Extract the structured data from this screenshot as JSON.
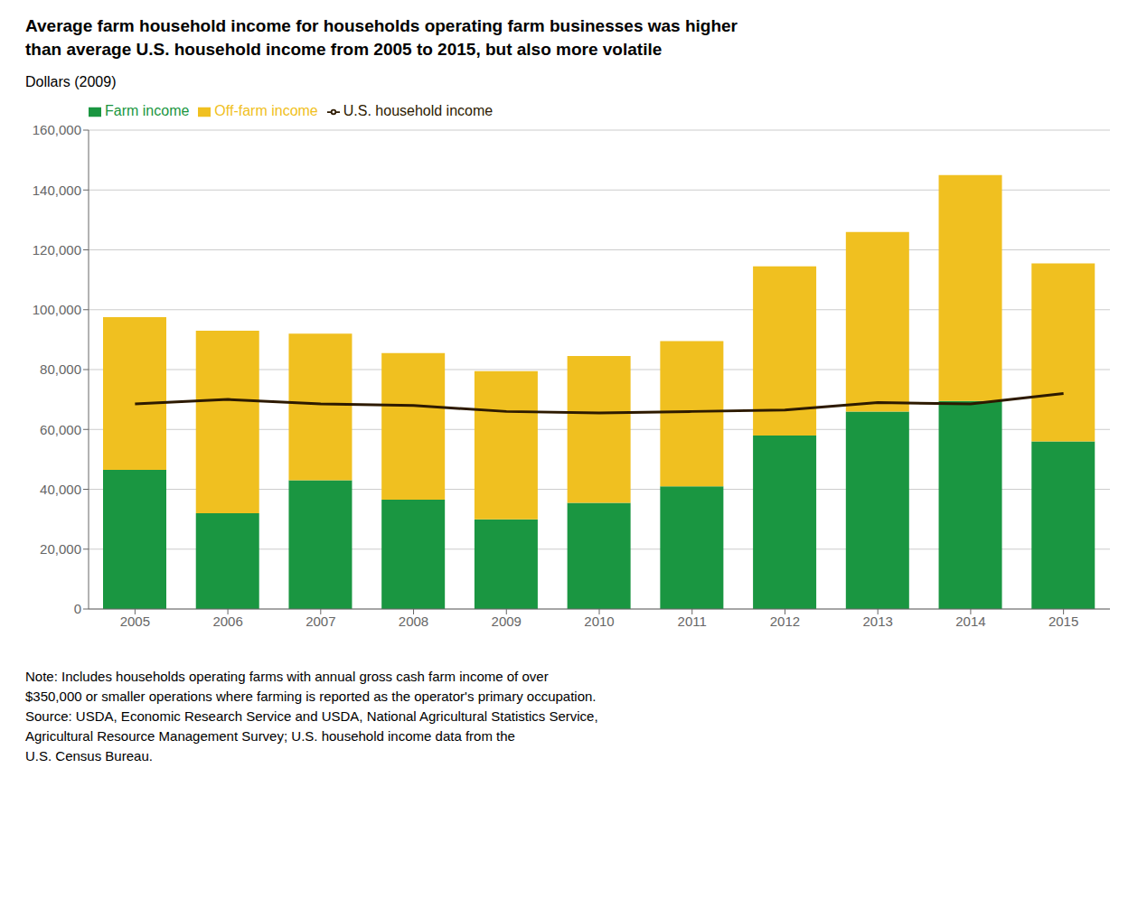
{
  "chart_data": {
    "type": "bar",
    "title": "Average farm household income for households operating farm businesses was higher\nthan average U.S. household income from 2005 to 2015, but also more volatile",
    "y_label": "Dollars (2009)",
    "annotations": [
      "Note: Includes households operating farms with annual gross cash farm income of over\n$350,000 or smaller operations where farming is reported as the operator's primary occupation.\nSource: USDA, Economic Research Service and USDA, National Agricultural Statistics Service,\nAgricultural Resource Management Survey; U.S. household income data from the\nU.S. Census Bureau."
    ],
    "categories": [
      "2005",
      "2006",
      "2007",
      "2008",
      "2009",
      "2010",
      "2011",
      "2012",
      "2013",
      "2014",
      "2015"
    ],
    "series": [
      {
        "name": "Farm income",
        "type": "bar",
        "color": "#1a9641",
        "values": [
          46500,
          32000,
          43000,
          36500,
          30000,
          35500,
          41000,
          58000,
          66000,
          69500,
          56000
        ]
      },
      {
        "name": "Off-farm income",
        "type": "bar",
        "color": "#f0c020",
        "values": [
          51000,
          61000,
          49000,
          49000,
          49500,
          49000,
          48500,
          56500,
          60000,
          75500,
          59500
        ]
      },
      {
        "name": "U.S. household income",
        "type": "line",
        "color": "#2d1a00",
        "values": [
          68500,
          70000,
          68500,
          68000,
          66000,
          65500,
          66000,
          66500,
          69000,
          68500,
          72000
        ]
      }
    ],
    "stacked": true,
    "ylim": [
      0,
      160000
    ],
    "yticks": [
      0,
      {
        "value": 20000,
        "label": "20,000"
      },
      {
        "value": 40000,
        "label": "40,000"
      },
      {
        "value": 60000,
        "label": "60,000"
      },
      {
        "value": 80000,
        "label": "80,000"
      },
      {
        "value": 100000,
        "label": "100,000"
      },
      {
        "value": 120000,
        "label": "120,000"
      },
      {
        "value": 140000,
        "label": "140,000"
      },
      {
        "value": 160000,
        "label": "160,000"
      }
    ],
    "grid": true,
    "legend": "upper left"
  }
}
